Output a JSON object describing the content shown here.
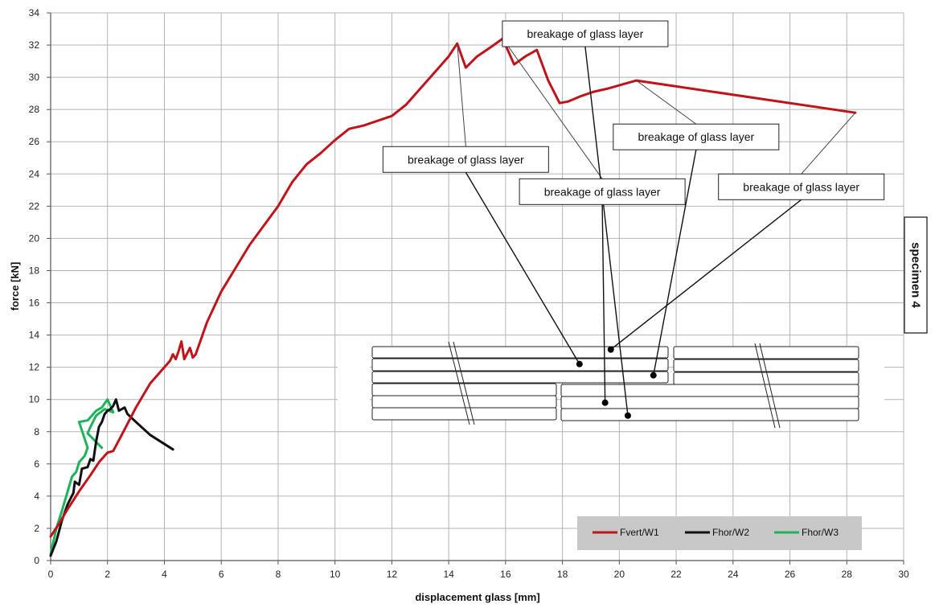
{
  "chart_data": {
    "type": "line",
    "title": "",
    "xlabel": "displacement glass [mm]",
    "ylabel": "force [kN]",
    "xlim": [
      0,
      30
    ],
    "ylim": [
      0,
      34
    ],
    "xticks": [
      0,
      2,
      4,
      6,
      8,
      10,
      12,
      14,
      16,
      18,
      20,
      22,
      24,
      26,
      28,
      30
    ],
    "yticks": [
      0,
      2,
      4,
      6,
      8,
      10,
      12,
      14,
      16,
      18,
      20,
      22,
      24,
      26,
      28,
      30,
      32,
      34
    ],
    "grid": true,
    "legend_position": "bottom-right",
    "side_label": "specimen 4",
    "series": [
      {
        "name": "Fvert/W1",
        "color": "#c0141b",
        "points": [
          [
            0,
            1.5
          ],
          [
            0.3,
            2.3
          ],
          [
            0.6,
            3.2
          ],
          [
            1.0,
            4.3
          ],
          [
            1.4,
            5.3
          ],
          [
            1.7,
            6.1
          ],
          [
            2.0,
            6.7
          ],
          [
            2.2,
            6.8
          ],
          [
            2.5,
            7.8
          ],
          [
            3.0,
            9.5
          ],
          [
            3.5,
            11.0
          ],
          [
            4.0,
            12.0
          ],
          [
            4.2,
            12.4
          ],
          [
            4.3,
            12.8
          ],
          [
            4.4,
            12.5
          ],
          [
            4.5,
            13.0
          ],
          [
            4.6,
            13.6
          ],
          [
            4.7,
            12.5
          ],
          [
            4.9,
            13.2
          ],
          [
            5.0,
            12.6
          ],
          [
            5.1,
            12.8
          ],
          [
            5.5,
            14.8
          ],
          [
            6.0,
            16.7
          ],
          [
            7.0,
            19.6
          ],
          [
            8.0,
            22.0
          ],
          [
            8.5,
            23.5
          ],
          [
            9.0,
            24.6
          ],
          [
            9.5,
            25.3
          ],
          [
            10.0,
            26.1
          ],
          [
            10.5,
            26.8
          ],
          [
            11.0,
            27.0
          ],
          [
            11.5,
            27.3
          ],
          [
            12.0,
            27.6
          ],
          [
            12.5,
            28.3
          ],
          [
            13.0,
            29.3
          ],
          [
            13.5,
            30.3
          ],
          [
            14.0,
            31.3
          ],
          [
            14.3,
            32.1
          ],
          [
            14.6,
            30.6
          ],
          [
            15.0,
            31.3
          ],
          [
            15.5,
            31.9
          ],
          [
            15.9,
            32.4
          ],
          [
            16.3,
            30.8
          ],
          [
            16.7,
            31.3
          ],
          [
            17.1,
            31.7
          ],
          [
            17.5,
            29.8
          ],
          [
            17.9,
            28.4
          ],
          [
            18.2,
            28.5
          ],
          [
            18.6,
            28.8
          ],
          [
            19.1,
            29.1
          ],
          [
            19.6,
            29.3
          ],
          [
            20.2,
            29.6
          ],
          [
            20.6,
            29.8
          ],
          [
            28.3,
            27.8
          ]
        ]
      },
      {
        "name": "Fhor/W2",
        "color": "#111111",
        "points": [
          [
            0,
            0.3
          ],
          [
            0.2,
            1.2
          ],
          [
            0.4,
            2.5
          ],
          [
            0.6,
            3.5
          ],
          [
            0.8,
            4.2
          ],
          [
            0.85,
            4.9
          ],
          [
            1.0,
            4.7
          ],
          [
            1.1,
            5.7
          ],
          [
            1.3,
            5.8
          ],
          [
            1.4,
            6.3
          ],
          [
            1.5,
            6.2
          ],
          [
            1.6,
            7.4
          ],
          [
            1.7,
            8.3
          ],
          [
            1.8,
            8.6
          ],
          [
            1.9,
            9.1
          ],
          [
            2.0,
            9.3
          ],
          [
            2.1,
            9.4
          ],
          [
            2.2,
            9.6
          ],
          [
            2.3,
            10.0
          ],
          [
            2.4,
            9.3
          ],
          [
            2.6,
            9.5
          ],
          [
            2.7,
            9.1
          ],
          [
            3.0,
            8.6
          ],
          [
            3.5,
            7.8
          ],
          [
            4.3,
            6.9
          ]
        ]
      },
      {
        "name": "Fhor/W3",
        "color": "#1db35a",
        "points": [
          [
            0,
            0.4
          ],
          [
            0.2,
            2.0
          ],
          [
            0.4,
            3.1
          ],
          [
            0.6,
            4.3
          ],
          [
            0.75,
            5.2
          ],
          [
            0.9,
            5.5
          ],
          [
            1.0,
            6.1
          ],
          [
            1.2,
            6.5
          ],
          [
            1.3,
            7.0
          ],
          [
            1.0,
            8.6
          ],
          [
            1.3,
            8.7
          ],
          [
            1.6,
            9.3
          ],
          [
            1.8,
            9.5
          ],
          [
            2.0,
            10.0
          ],
          [
            2.2,
            9.2
          ],
          [
            1.9,
            9.4
          ],
          [
            1.6,
            9.0
          ],
          [
            1.4,
            8.3
          ],
          [
            1.3,
            7.9
          ],
          [
            1.8,
            7.0
          ]
        ]
      }
    ],
    "annotations": [
      {
        "text": "breakage of glass layer",
        "box_x": 14.6,
        "box_y": 24.9
      },
      {
        "text": "breakage of glass layer",
        "box_x": 19.4,
        "box_y": 22.9
      },
      {
        "text": "breakage of glass layer",
        "box_x": 18.8,
        "box_y": 32.7
      },
      {
        "text": "breakage of glass layer",
        "box_x": 22.7,
        "box_y": 26.3
      },
      {
        "text": "breakage of glass layer",
        "box_x": 26.4,
        "box_y": 23.2
      }
    ]
  },
  "legend": {
    "items": [
      "Fvert/W1",
      "Fhor/W2",
      "Fhor/W3"
    ]
  }
}
